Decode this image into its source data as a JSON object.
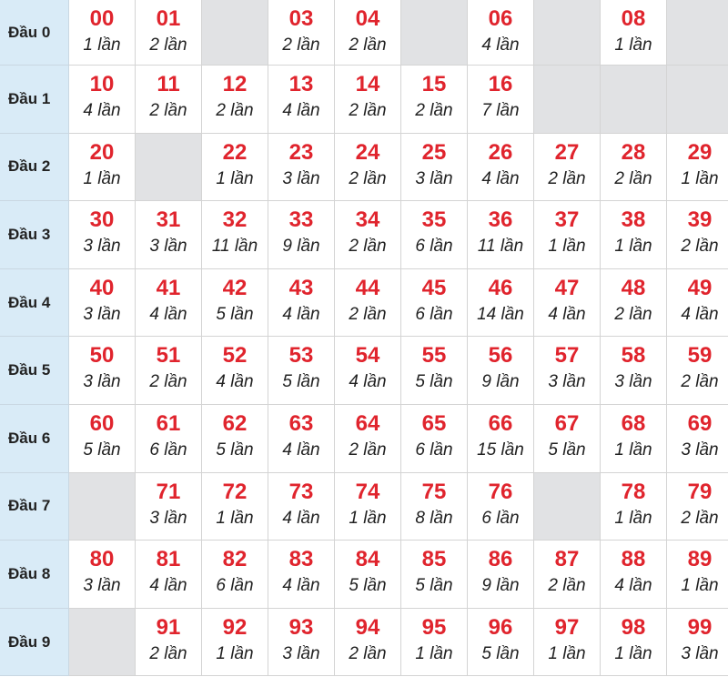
{
  "rows": [
    {
      "label": "Đầu 0",
      "cells": [
        {
          "num": "00",
          "count": "1 lần"
        },
        {
          "num": "01",
          "count": "2 lần"
        },
        null,
        {
          "num": "03",
          "count": "2 lần"
        },
        {
          "num": "04",
          "count": "2 lần"
        },
        null,
        {
          "num": "06",
          "count": "4 lần"
        },
        null,
        {
          "num": "08",
          "count": "1 lần"
        },
        null
      ]
    },
    {
      "label": "Đầu 1",
      "cells": [
        {
          "num": "10",
          "count": "4 lần"
        },
        {
          "num": "11",
          "count": "2 lần"
        },
        {
          "num": "12",
          "count": "2 lần"
        },
        {
          "num": "13",
          "count": "4 lần"
        },
        {
          "num": "14",
          "count": "2 lần"
        },
        {
          "num": "15",
          "count": "2 lần"
        },
        {
          "num": "16",
          "count": "7 lần"
        },
        null,
        null,
        null
      ]
    },
    {
      "label": "Đầu 2",
      "cells": [
        {
          "num": "20",
          "count": "1 lần"
        },
        null,
        {
          "num": "22",
          "count": "1 lần"
        },
        {
          "num": "23",
          "count": "3 lần"
        },
        {
          "num": "24",
          "count": "2 lần"
        },
        {
          "num": "25",
          "count": "3 lần"
        },
        {
          "num": "26",
          "count": "4 lần"
        },
        {
          "num": "27",
          "count": "2 lần"
        },
        {
          "num": "28",
          "count": "2 lần"
        },
        {
          "num": "29",
          "count": "1 lần"
        }
      ]
    },
    {
      "label": "Đầu 3",
      "cells": [
        {
          "num": "30",
          "count": "3 lần"
        },
        {
          "num": "31",
          "count": "3 lần"
        },
        {
          "num": "32",
          "count": "11 lần"
        },
        {
          "num": "33",
          "count": "9 lần"
        },
        {
          "num": "34",
          "count": "2 lần"
        },
        {
          "num": "35",
          "count": "6 lần"
        },
        {
          "num": "36",
          "count": "11 lần"
        },
        {
          "num": "37",
          "count": "1 lần"
        },
        {
          "num": "38",
          "count": "1 lần"
        },
        {
          "num": "39",
          "count": "2 lần"
        }
      ]
    },
    {
      "label": "Đầu 4",
      "cells": [
        {
          "num": "40",
          "count": "3 lần"
        },
        {
          "num": "41",
          "count": "4 lần"
        },
        {
          "num": "42",
          "count": "5 lần"
        },
        {
          "num": "43",
          "count": "4 lần"
        },
        {
          "num": "44",
          "count": "2 lần"
        },
        {
          "num": "45",
          "count": "6 lần"
        },
        {
          "num": "46",
          "count": "14 lần"
        },
        {
          "num": "47",
          "count": "4 lần"
        },
        {
          "num": "48",
          "count": "2 lần"
        },
        {
          "num": "49",
          "count": "4 lần"
        }
      ]
    },
    {
      "label": "Đầu 5",
      "cells": [
        {
          "num": "50",
          "count": "3 lần"
        },
        {
          "num": "51",
          "count": "2 lần"
        },
        {
          "num": "52",
          "count": "4 lần"
        },
        {
          "num": "53",
          "count": "5 lần"
        },
        {
          "num": "54",
          "count": "4 lần"
        },
        {
          "num": "55",
          "count": "5 lần"
        },
        {
          "num": "56",
          "count": "9 lần"
        },
        {
          "num": "57",
          "count": "3 lần"
        },
        {
          "num": "58",
          "count": "3 lần"
        },
        {
          "num": "59",
          "count": "2 lần"
        }
      ]
    },
    {
      "label": "Đầu 6",
      "cells": [
        {
          "num": "60",
          "count": "5 lần"
        },
        {
          "num": "61",
          "count": "6 lần"
        },
        {
          "num": "62",
          "count": "5 lần"
        },
        {
          "num": "63",
          "count": "4 lần"
        },
        {
          "num": "64",
          "count": "2 lần"
        },
        {
          "num": "65",
          "count": "6 lần"
        },
        {
          "num": "66",
          "count": "15 lần"
        },
        {
          "num": "67",
          "count": "5 lần"
        },
        {
          "num": "68",
          "count": "1 lần"
        },
        {
          "num": "69",
          "count": "3 lần"
        }
      ]
    },
    {
      "label": "Đầu 7",
      "cells": [
        null,
        {
          "num": "71",
          "count": "3 lần"
        },
        {
          "num": "72",
          "count": "1 lần"
        },
        {
          "num": "73",
          "count": "4 lần"
        },
        {
          "num": "74",
          "count": "1 lần"
        },
        {
          "num": "75",
          "count": "8 lần"
        },
        {
          "num": "76",
          "count": "6 lần"
        },
        null,
        {
          "num": "78",
          "count": "1 lần"
        },
        {
          "num": "79",
          "count": "2 lần"
        }
      ]
    },
    {
      "label": "Đầu 8",
      "cells": [
        {
          "num": "80",
          "count": "3 lần"
        },
        {
          "num": "81",
          "count": "4 lần"
        },
        {
          "num": "82",
          "count": "6 lần"
        },
        {
          "num": "83",
          "count": "4 lần"
        },
        {
          "num": "84",
          "count": "5 lần"
        },
        {
          "num": "85",
          "count": "5 lần"
        },
        {
          "num": "86",
          "count": "9 lần"
        },
        {
          "num": "87",
          "count": "2 lần"
        },
        {
          "num": "88",
          "count": "4 lần"
        },
        {
          "num": "89",
          "count": "1 lần"
        }
      ]
    },
    {
      "label": "Đầu 9",
      "cells": [
        null,
        {
          "num": "91",
          "count": "2 lần"
        },
        {
          "num": "92",
          "count": "1 lần"
        },
        {
          "num": "93",
          "count": "3 lần"
        },
        {
          "num": "94",
          "count": "2 lần"
        },
        {
          "num": "95",
          "count": "1 lần"
        },
        {
          "num": "96",
          "count": "5 lần"
        },
        {
          "num": "97",
          "count": "1 lần"
        },
        {
          "num": "98",
          "count": "1 lần"
        },
        {
          "num": "99",
          "count": "3 lần"
        }
      ]
    }
  ]
}
